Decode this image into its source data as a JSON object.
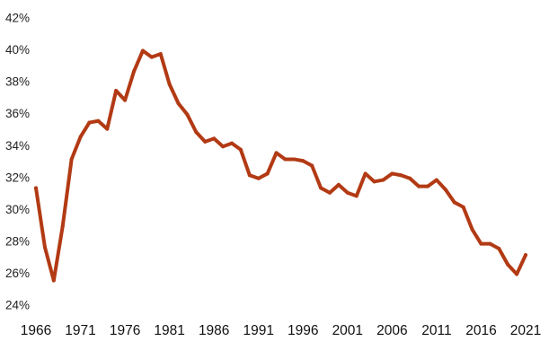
{
  "chart_data": {
    "type": "line",
    "title": "",
    "xlabel": "",
    "ylabel": "",
    "xlim": [
      1966,
      2021
    ],
    "ylim": [
      24,
      42
    ],
    "grid": false,
    "legend": "none",
    "colors": {
      "line": "#b23a14",
      "text": "#222222"
    },
    "y_ticks": [
      {
        "value": 24,
        "label": "24%"
      },
      {
        "value": 26,
        "label": "26%"
      },
      {
        "value": 28,
        "label": "28%"
      },
      {
        "value": 30,
        "label": "30%"
      },
      {
        "value": 32,
        "label": "32%"
      },
      {
        "value": 34,
        "label": "34%"
      },
      {
        "value": 36,
        "label": "36%"
      },
      {
        "value": 38,
        "label": "38%"
      },
      {
        "value": 40,
        "label": "40%"
      },
      {
        "value": 42,
        "label": "42%"
      }
    ],
    "x_ticks": [
      {
        "value": 1966,
        "label": "1966"
      },
      {
        "value": 1971,
        "label": "1971"
      },
      {
        "value": 1976,
        "label": "1976"
      },
      {
        "value": 1981,
        "label": "1981"
      },
      {
        "value": 1986,
        "label": "1986"
      },
      {
        "value": 1991,
        "label": "1991"
      },
      {
        "value": 1996,
        "label": "1996"
      },
      {
        "value": 2001,
        "label": "2001"
      },
      {
        "value": 2006,
        "label": "2006"
      },
      {
        "value": 2011,
        "label": "2011"
      },
      {
        "value": 2016,
        "label": "2016"
      },
      {
        "value": 2021,
        "label": "2021"
      }
    ],
    "series": [
      {
        "x": [
          1966,
          1967,
          1968,
          1969,
          1970,
          1971,
          1972,
          1973,
          1974,
          1975,
          1976,
          1977,
          1978,
          1979,
          1980,
          1981,
          1982,
          1983,
          1984,
          1985,
          1986,
          1987,
          1988,
          1989,
          1990,
          1991,
          1992,
          1993,
          1994,
          1995,
          1996,
          1997,
          1998,
          1999,
          2000,
          2001,
          2002,
          2003,
          2004,
          2005,
          2006,
          2007,
          2008,
          2009,
          2010,
          2011,
          2012,
          2013,
          2014,
          2015,
          2016,
          2017,
          2018,
          2019,
          2020,
          2021
        ],
        "y": [
          31.4,
          27.7,
          25.6,
          29.0,
          33.2,
          34.6,
          35.5,
          35.6,
          35.1,
          37.5,
          36.9,
          38.7,
          40.0,
          39.6,
          39.8,
          37.9,
          36.7,
          36.0,
          34.9,
          34.3,
          34.5,
          34.0,
          34.2,
          33.8,
          32.2,
          32.0,
          32.3,
          33.6,
          33.2,
          33.2,
          33.1,
          32.8,
          31.4,
          31.1,
          31.6,
          31.1,
          30.9,
          32.3,
          31.8,
          31.9,
          32.3,
          32.2,
          32.0,
          31.5,
          31.5,
          31.9,
          31.3,
          30.5,
          30.2,
          28.8,
          27.9,
          27.9,
          27.6,
          26.6,
          26.0,
          27.2
        ]
      }
    ]
  }
}
